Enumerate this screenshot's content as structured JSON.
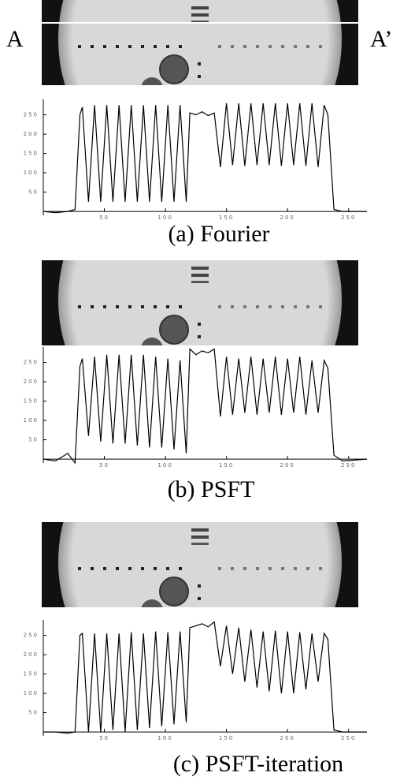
{
  "image_labels": [
    "A",
    "A’"
  ],
  "chart_data": [
    {
      "type": "line",
      "caption": "(a)  Fourier",
      "color": "#000000",
      "x": [
        0,
        10,
        20,
        26,
        30,
        32,
        37,
        42,
        47,
        52,
        57,
        62,
        67,
        72,
        77,
        82,
        87,
        92,
        97,
        102,
        107,
        112,
        117,
        120,
        125,
        130,
        135,
        140,
        145,
        150,
        155,
        160,
        165,
        170,
        175,
        180,
        185,
        190,
        195,
        200,
        205,
        210,
        215,
        220,
        225,
        230,
        233,
        238,
        245,
        265
      ],
      "values": [
        0,
        -3,
        0,
        5,
        250,
        270,
        25,
        275,
        25,
        275,
        25,
        275,
        25,
        275,
        25,
        275,
        25,
        275,
        25,
        275,
        25,
        275,
        25,
        255,
        250,
        258,
        248,
        255,
        115,
        280,
        120,
        280,
        118,
        280,
        120,
        280,
        120,
        280,
        118,
        280,
        120,
        280,
        118,
        280,
        115,
        275,
        250,
        5,
        0,
        0
      ],
      "xlim": [
        0,
        265
      ],
      "ylim": [
        -10,
        290
      ],
      "xticks": [
        50,
        100,
        150,
        200,
        250
      ],
      "yticks": [
        50,
        100,
        150,
        200,
        250
      ]
    },
    {
      "type": "line",
      "caption": "(b)  PSFT",
      "color": "#000000",
      "x": [
        0,
        10,
        20,
        26,
        30,
        32,
        37,
        42,
        47,
        52,
        57,
        62,
        67,
        72,
        77,
        82,
        87,
        92,
        97,
        102,
        107,
        112,
        117,
        120,
        125,
        130,
        135,
        140,
        145,
        150,
        155,
        160,
        165,
        170,
        175,
        180,
        185,
        190,
        195,
        200,
        205,
        210,
        215,
        220,
        225,
        230,
        233,
        238,
        245,
        265
      ],
      "values": [
        0,
        -5,
        15,
        -10,
        240,
        260,
        60,
        265,
        45,
        270,
        40,
        270,
        40,
        270,
        35,
        270,
        30,
        265,
        30,
        260,
        25,
        255,
        15,
        285,
        270,
        280,
        275,
        285,
        110,
        265,
        115,
        260,
        120,
        265,
        115,
        260,
        120,
        265,
        115,
        260,
        120,
        265,
        115,
        255,
        120,
        255,
        235,
        10,
        -5,
        0
      ],
      "xlim": [
        0,
        265
      ],
      "ylim": [
        -10,
        290
      ],
      "xticks": [
        50,
        100,
        150,
        200,
        250
      ],
      "yticks": [
        50,
        100,
        150,
        200,
        250
      ]
    },
    {
      "type": "line",
      "caption": "(c) PSFT-iteration",
      "color": "#000000",
      "x": [
        0,
        10,
        20,
        26,
        30,
        32,
        37,
        42,
        47,
        52,
        57,
        62,
        67,
        72,
        77,
        82,
        87,
        92,
        97,
        102,
        107,
        112,
        117,
        120,
        125,
        130,
        135,
        140,
        145,
        150,
        155,
        160,
        165,
        170,
        175,
        180,
        185,
        190,
        195,
        200,
        205,
        210,
        215,
        220,
        225,
        230,
        233,
        238,
        245,
        265
      ],
      "values": [
        0,
        0,
        -3,
        0,
        250,
        255,
        0,
        255,
        0,
        255,
        5,
        255,
        0,
        258,
        5,
        255,
        10,
        260,
        15,
        258,
        20,
        260,
        25,
        270,
        275,
        280,
        272,
        285,
        170,
        275,
        150,
        270,
        130,
        265,
        115,
        260,
        105,
        262,
        100,
        260,
        100,
        258,
        110,
        255,
        130,
        255,
        240,
        5,
        0,
        0
      ],
      "xlim": [
        0,
        265
      ],
      "ylim": [
        -10,
        290
      ],
      "xticks": [
        50,
        100,
        150,
        200,
        250
      ],
      "yticks": [
        50,
        100,
        150,
        200,
        250
      ]
    }
  ]
}
